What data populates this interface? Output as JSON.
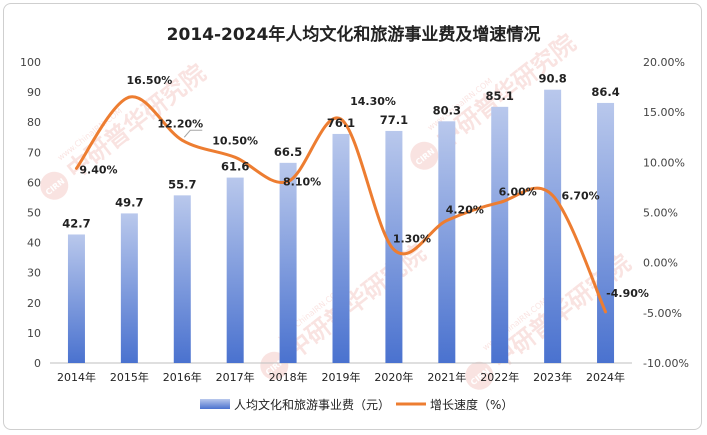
{
  "chart_data": {
    "type": "bar",
    "title": "2014-2024年人均文化和旅游事业费及增速情况",
    "categories": [
      "2014年",
      "2015年",
      "2016年",
      "2017年",
      "2018年",
      "2019年",
      "2020年",
      "2021年",
      "2022年",
      "2023年",
      "2024年"
    ],
    "series": [
      {
        "name": "人均文化和旅游事业费（元）",
        "type": "bar",
        "axis": "left",
        "values": [
          42.7,
          49.7,
          55.7,
          61.6,
          66.5,
          76.1,
          77.1,
          80.3,
          85.1,
          90.8,
          86.4
        ],
        "labels": [
          "42.7",
          "49.7",
          "55.7",
          "61.6",
          "66.5",
          "76.1",
          "77.1",
          "80.3",
          "85.1",
          "90.8",
          "86.4"
        ]
      },
      {
        "name": "增长速度（%）",
        "type": "line",
        "axis": "right",
        "values": [
          9.4,
          16.5,
          12.2,
          10.5,
          8.1,
          14.3,
          1.3,
          4.2,
          6.0,
          6.7,
          -4.9
        ],
        "labels": [
          "9.40%",
          "16.50%",
          "12.20%",
          "10.50%",
          "8.10%",
          "14.30%",
          "1.30%",
          "4.20%",
          "6.00%",
          "6.70%",
          "-4.90%"
        ]
      }
    ],
    "y_left": {
      "min": 0,
      "max": 100,
      "ticks": [
        "0",
        "10",
        "20",
        "30",
        "40",
        "50",
        "60",
        "70",
        "80",
        "90",
        "100"
      ]
    },
    "y_right": {
      "min": -10,
      "max": 20,
      "ticks": [
        "-10.00%",
        "-5.00%",
        "0.00%",
        "5.00%",
        "10.00%",
        "15.00%",
        "20.00%"
      ]
    },
    "grid": false,
    "legend_position": "bottom",
    "colors": {
      "bar_top": "#b9c8ec",
      "bar_bottom": "#4a72cf",
      "line": "#ed7d31"
    }
  },
  "watermark": {
    "text": "中研普华研究院",
    "sub": "www.ChinaIRN.COM",
    "logo": "CIRN"
  }
}
